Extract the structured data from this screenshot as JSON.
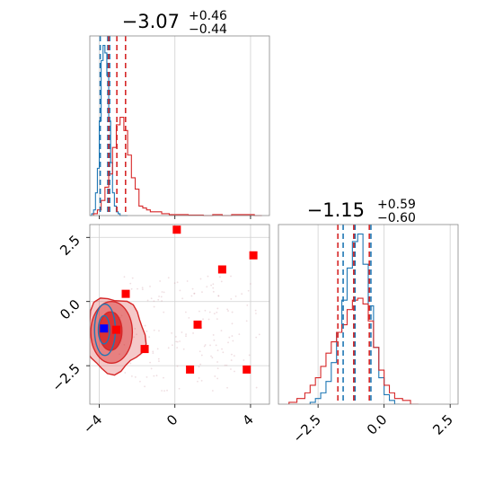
{
  "chart_data": [
    {
      "panel": "x-marginal",
      "type": "histogram",
      "title": {
        "main": "−3.07",
        "sup": "+0.46",
        "sub": "−0.44"
      },
      "xlim": [
        -4.5,
        5.0
      ],
      "xticks": [
        -4,
        0,
        4
      ],
      "grid": true,
      "series": [
        {
          "color": "#1f77b4",
          "style": "step",
          "bins": [
            -4.5,
            -4.4,
            -4.3,
            -4.2,
            -4.1,
            -4.0,
            -3.9,
            -3.8,
            -3.7,
            -3.6,
            -3.5,
            -3.4,
            -3.3,
            -3.2,
            -3.1,
            -3.0,
            -2.9,
            -2.8,
            -2.7,
            -2.6
          ],
          "values": [
            0,
            0.01,
            0.03,
            0.12,
            0.25,
            0.5,
            0.82,
            0.9,
            0.86,
            0.74,
            0.5,
            0.28,
            0.12,
            0.05,
            0.02,
            0.01,
            0,
            0,
            0,
            0
          ],
          "quantile_lines": [
            -3.95,
            -3.55,
            -3.45
          ]
        },
        {
          "color": "#d62728",
          "style": "step",
          "bins": [
            -4.3,
            -4.1,
            -3.9,
            -3.7,
            -3.5,
            -3.3,
            -3.1,
            -2.9,
            -2.7,
            -2.5,
            -2.3,
            -2.1,
            -1.9,
            -1.7,
            -1.5,
            -1.3,
            -1.1,
            -0.9,
            -0.7,
            -0.5,
            -0.3,
            -0.1,
            0.1,
            0.3,
            0.5,
            0.7,
            0.9,
            1.1,
            1.3,
            1.5,
            2.0,
            2.5,
            3.0,
            3.5,
            3.8,
            4.2
          ],
          "values": [
            0.01,
            0.03,
            0.08,
            0.15,
            0.22,
            0.36,
            0.48,
            0.52,
            0.45,
            0.32,
            0.2,
            0.14,
            0.05,
            0.04,
            0.03,
            0.02,
            0.02,
            0.02,
            0.01,
            0.01,
            0.005,
            0.005,
            0.005,
            0.005,
            0.005,
            0.003,
            0.003,
            0.003,
            0.003,
            0,
            0.005,
            0,
            0.005,
            0.005,
            0.005,
            0
          ],
          "quantile_lines": [
            -3.5,
            -3.07,
            -2.61
          ]
        }
      ]
    },
    {
      "panel": "joint",
      "type": "scatter",
      "xlim": [
        -4.5,
        5.0
      ],
      "ylim": [
        -4.0,
        3.0
      ],
      "xticks": [
        -4,
        0,
        4
      ],
      "yticks": [
        2.5,
        0.0,
        -2.5
      ],
      "ytick_labels": [
        "2.5",
        "0.0",
        "−2.5"
      ],
      "xtick_labels": [
        "−4",
        "0",
        "4"
      ],
      "grid": true,
      "contours": [
        {
          "color": "#d62728",
          "level": "outer",
          "cx": -3.2,
          "cy": -1.3,
          "rx": 1.55,
          "ry": 1.45
        },
        {
          "color": "#d62728",
          "level": "mid",
          "cx": -3.35,
          "cy": -1.2,
          "rx": 1.1,
          "ry": 1.2
        },
        {
          "color": "#d62728",
          "level": "inner",
          "cx": -3.4,
          "cy": -1.15,
          "rx": 0.6,
          "ry": 0.75
        },
        {
          "color": "#1f77b4",
          "level": "outer",
          "cx": -3.7,
          "cy": -1.1,
          "rx": 0.55,
          "ry": 1.0
        },
        {
          "color": "#1f77b4",
          "level": "inner",
          "cx": -3.75,
          "cy": -1.1,
          "rx": 0.3,
          "ry": 0.55
        }
      ],
      "red_markers": [
        {
          "x": 0.1,
          "y": 2.8
        },
        {
          "x": 4.15,
          "y": 1.8
        },
        {
          "x": 2.5,
          "y": 1.25
        },
        {
          "x": -2.6,
          "y": 0.3
        },
        {
          "x": 1.2,
          "y": -0.9
        },
        {
          "x": -3.1,
          "y": -1.1
        },
        {
          "x": -1.6,
          "y": -1.85
        },
        {
          "x": 0.8,
          "y": -2.65
        },
        {
          "x": 3.8,
          "y": -2.65
        }
      ],
      "blue_marker": {
        "x": -3.75,
        "y": -1.05
      }
    },
    {
      "panel": "y-marginal",
      "type": "histogram",
      "title": {
        "main": "−1.15",
        "sup": "+0.59",
        "sub": "−0.60"
      },
      "xlim": [
        -4.0,
        2.8
      ],
      "xticks": [
        -2.5,
        0.0,
        2.5
      ],
      "xtick_labels": [
        "−2.5",
        "0.0",
        "2.5"
      ],
      "grid": true,
      "series": [
        {
          "color": "#1f77b4",
          "style": "step",
          "bins": [
            -2.8,
            -2.6,
            -2.4,
            -2.2,
            -2.0,
            -1.8,
            -1.6,
            -1.4,
            -1.2,
            -1.0,
            -0.8,
            -0.6,
            -0.4,
            -0.2,
            0.0,
            0.2,
            0.4
          ],
          "values": [
            0.01,
            0.03,
            0.06,
            0.12,
            0.22,
            0.38,
            0.55,
            0.72,
            0.86,
            0.9,
            0.74,
            0.52,
            0.3,
            0.14,
            0.05,
            0.02,
            0
          ],
          "quantile_lines": [
            -1.55,
            -1.1,
            -0.5
          ]
        },
        {
          "color": "#d62728",
          "style": "step",
          "bins": [
            -3.6,
            -3.3,
            -3.0,
            -2.8,
            -2.6,
            -2.4,
            -2.2,
            -2.0,
            -1.8,
            -1.6,
            -1.4,
            -1.2,
            -1.0,
            -0.8,
            -0.6,
            -0.4,
            -0.2,
            0.0,
            0.2,
            0.4,
            0.7,
            1.0
          ],
          "values": [
            0.01,
            0.03,
            0.06,
            0.1,
            0.14,
            0.2,
            0.27,
            0.33,
            0.38,
            0.42,
            0.5,
            0.55,
            0.56,
            0.53,
            0.44,
            0.3,
            0.18,
            0.1,
            0.06,
            0.03,
            0.02,
            0
          ],
          "quantile_lines": [
            -1.75,
            -1.15,
            -0.56
          ]
        }
      ]
    }
  ]
}
